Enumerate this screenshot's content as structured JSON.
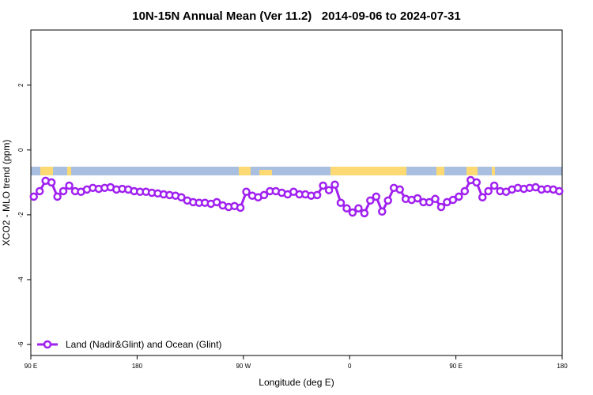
{
  "chart_data": {
    "type": "line",
    "title": "10N-15N Annual Mean (Ver 11.2)   2014-09-06 to 2024-07-31",
    "x_label": "Longitude (deg E)",
    "y_label": "XCO2 - MLO trend (ppm)",
    "xlim": [
      90,
      540
    ],
    "ylim": [
      -6.34,
      3.7
    ],
    "xticks": [
      {
        "value": 90,
        "label": "90 E"
      },
      180,
      {
        "value": 270,
        "label": "90 W"
      },
      {
        "value": 360,
        "label": "0"
      },
      {
        "value": 450,
        "label": "90 E"
      },
      {
        "value": 540,
        "label": "180"
      }
    ],
    "yticks": [
      2,
      0,
      -2,
      -4,
      -6
    ],
    "legend": "bottom-left",
    "x": [
      92.5,
      97.5,
      102.5,
      107.5,
      112.5,
      117.5,
      122.5,
      127.5,
      132.5,
      137.5,
      142.5,
      147.5,
      152.5,
      157.5,
      162.5,
      167.5,
      172.5,
      177.5,
      182.5,
      187.5,
      192.5,
      197.5,
      202.5,
      207.5,
      212.5,
      217.5,
      222.5,
      227.5,
      232.5,
      237.5,
      242.5,
      247.5,
      252.5,
      257.5,
      262.5,
      267.5,
      272.5,
      277.5,
      282.5,
      287.5,
      292.5,
      297.5,
      302.5,
      307.5,
      312.5,
      317.5,
      322.5,
      327.5,
      332.5,
      337.5,
      342.5,
      347.5,
      352.5,
      357.5,
      362.5,
      367.5,
      372.5,
      377.5,
      382.5,
      387.5,
      392.5,
      397.5,
      402.5,
      407.5,
      412.5,
      417.5,
      422.5,
      427.5,
      432.5,
      437.5,
      442.5,
      447.5,
      452.5,
      457.5,
      462.5,
      467.5,
      472.5,
      477.5,
      482.5,
      487.5,
      492.5,
      497.5,
      502.5,
      507.5,
      512.5,
      517.5,
      522.5,
      527.5,
      532.5,
      537.5
    ],
    "series": [
      {
        "name": "Land (Nadir&Glint) and Ocean (Glint)",
        "color": "#a020f0",
        "values": [
          -1.44,
          -1.27,
          -0.95,
          -1.0,
          -1.44,
          -1.27,
          -1.1,
          -1.27,
          -1.29,
          -1.22,
          -1.17,
          -1.2,
          -1.17,
          -1.15,
          -1.22,
          -1.2,
          -1.22,
          -1.27,
          -1.29,
          -1.29,
          -1.32,
          -1.34,
          -1.37,
          -1.39,
          -1.41,
          -1.46,
          -1.56,
          -1.61,
          -1.63,
          -1.63,
          -1.66,
          -1.61,
          -1.71,
          -1.76,
          -1.73,
          -1.78,
          -1.29,
          -1.41,
          -1.46,
          -1.39,
          -1.27,
          -1.27,
          -1.32,
          -1.37,
          -1.29,
          -1.37,
          -1.37,
          -1.41,
          -1.39,
          -1.1,
          -1.24,
          -1.07,
          -1.63,
          -1.8,
          -1.93,
          -1.8,
          -1.95,
          -1.56,
          -1.44,
          -1.9,
          -1.56,
          -1.17,
          -1.22,
          -1.51,
          -1.54,
          -1.49,
          -1.61,
          -1.61,
          -1.51,
          -1.76,
          -1.61,
          -1.54,
          -1.44,
          -1.27,
          -0.93,
          -1.0,
          -1.46,
          -1.27,
          -1.1,
          -1.27,
          -1.29,
          -1.22,
          -1.17,
          -1.2,
          -1.17,
          -1.15,
          -1.22,
          -1.2,
          -1.22,
          -1.27
        ]
      }
    ]
  }
}
